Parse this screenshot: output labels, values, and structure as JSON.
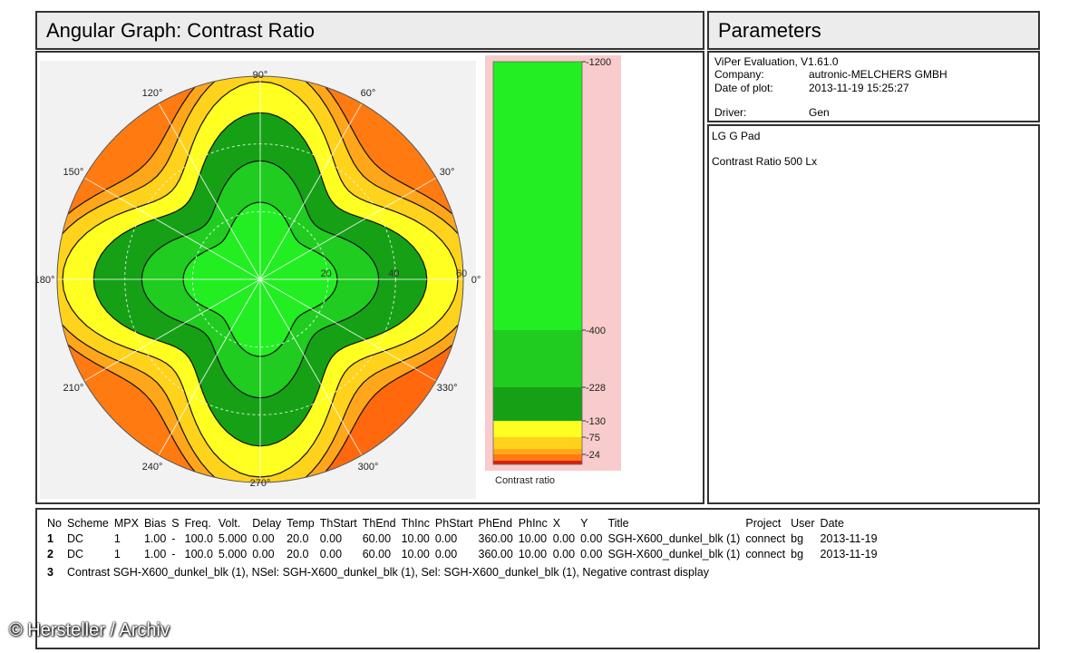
{
  "header": {
    "chart_title": "Angular Graph: Contrast Ratio",
    "params_title": "Parameters"
  },
  "meta": {
    "line1": "ViPer Evaluation, V1.61.0",
    "company_label": "Company:",
    "company_value": "autronic-MELCHERS GMBH",
    "date_label": "Date of plot:",
    "date_value": "2013-11-19 15:25:27",
    "driver_label": "Driver:",
    "driver_value": "Gen"
  },
  "description": {
    "device": "LG G Pad",
    "measurement": "Contrast Ratio  500 Lx"
  },
  "chart_data": {
    "type": "polar_contour",
    "title": "Angular Graph: Contrast Ratio",
    "colorbar_label": "Contrast ratio",
    "angle_labels": [
      "90°",
      "60°",
      "30°",
      "0°",
      "330°",
      "300°",
      "270°",
      "240°",
      "210°",
      "180°",
      "150°",
      "120°"
    ],
    "angles_deg": [
      90,
      60,
      30,
      0,
      330,
      300,
      270,
      240,
      210,
      180,
      150,
      120
    ],
    "radial_labels": [
      "20",
      "40",
      "60"
    ],
    "radial_values": [
      20,
      40,
      60
    ],
    "theta_max": 60,
    "colorbar_ticks": [
      "1200",
      "400",
      "228",
      "130",
      "75",
      "24"
    ],
    "levels": [
      {
        "min": 400,
        "max": 1200,
        "color": "#22ee22"
      },
      {
        "min": 228,
        "max": 400,
        "color": "#1fcc1f"
      },
      {
        "min": 130,
        "max": 228,
        "color": "#16a016"
      },
      {
        "min": 75,
        "max": 130,
        "color": "#ffff22"
      },
      {
        "min": 40,
        "max": 75,
        "color": "#ffd21c"
      },
      {
        "min": 24,
        "max": 40,
        "color": "#ffa61a"
      },
      {
        "min": 0,
        "max": 24,
        "color": "#ff7a10"
      }
    ],
    "colorbar_background": "#f8cccc"
  },
  "table": {
    "headers": [
      "No",
      "Scheme",
      "MPX",
      "Bias",
      "S",
      "Freq.",
      "Volt.",
      "Delay",
      "Temp",
      "ThStart",
      "ThEnd",
      "ThInc",
      "PhStart",
      "PhEnd",
      "PhInc",
      "X",
      "Y",
      "Title",
      "Project",
      "User",
      "Date"
    ],
    "rows": [
      [
        "1",
        "DC",
        "1",
        "1.00",
        "-",
        "100.0",
        "5.000",
        "0.00",
        "20.0",
        "0.00",
        "60.00",
        "10.00",
        "0.00",
        "360.00",
        "10.00",
        "0.00",
        "0.00",
        "SGH-X600_dunkel_blk (1)",
        "connect",
        "bg",
        "2013-11-19"
      ],
      [
        "2",
        "DC",
        "1",
        "1.00",
        "-",
        "100.0",
        "5.000",
        "0.00",
        "20.0",
        "0.00",
        "60.00",
        "10.00",
        "0.00",
        "360.00",
        "10.00",
        "0.00",
        "0.00",
        "SGH-X600_dunkel_blk (1)",
        "connect",
        "bg",
        "2013-11-19"
      ]
    ],
    "row3_no": "3",
    "row3_text": "Contrast SGH-X600_dunkel_blk (1), NSel: SGH-X600_dunkel_blk (1), Sel: SGH-X600_dunkel_blk (1), Negative contrast display"
  },
  "credit": "© Hersteller / Archiv"
}
